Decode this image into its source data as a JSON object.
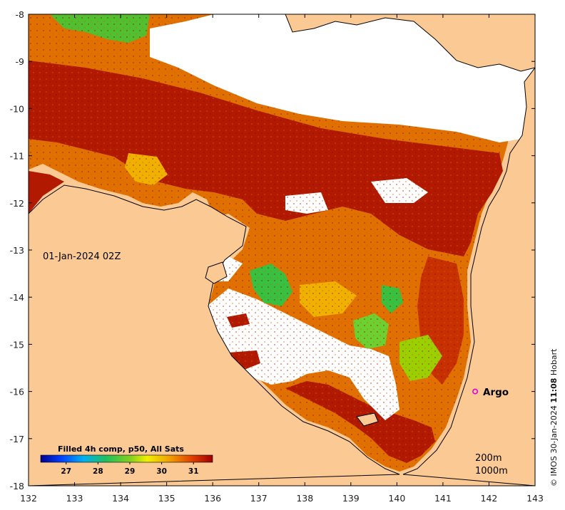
{
  "map": {
    "timestamp": "01-Jan-2024 02Z",
    "x_ticks": [
      "132",
      "133",
      "134",
      "135",
      "136",
      "137",
      "138",
      "139",
      "140",
      "141",
      "142",
      "143"
    ],
    "y_ticks": [
      "-8",
      "-9",
      "-10",
      "-11",
      "-12",
      "-13",
      "-14",
      "-15",
      "-16",
      "-17",
      "-18"
    ],
    "marker": {
      "label": "Argo",
      "lon": 141.7,
      "lat": -16.0,
      "color": "#e000e0"
    },
    "depth_contours": [
      "200m",
      "1000m"
    ],
    "colorbar": {
      "title": "Filled 4h comp, p50, All Sats",
      "ticks": [
        "27",
        "28",
        "29",
        "30",
        "31"
      ],
      "range": [
        26.2,
        31.6
      ]
    },
    "colors": {
      "land": "#fbc994",
      "no_data": "#ffffff",
      "sst_warm": "#b11a00",
      "sst_mid": "#e07000",
      "sst_cool": "#30c030"
    }
  },
  "credit": {
    "prefix": "© IMOS 30-Jan-2024 ",
    "time_bold": "11:08",
    "suffix": " Hobart"
  }
}
